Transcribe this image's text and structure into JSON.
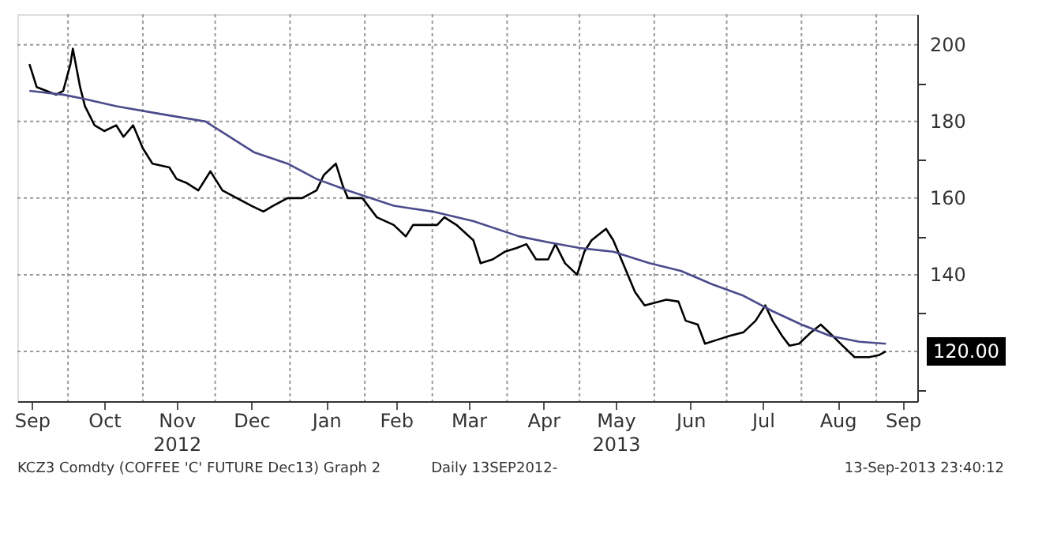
{
  "chart_data": {
    "type": "line",
    "xlim": [
      "2012-09-10",
      "2013-09-18"
    ],
    "xticks": [
      {
        "value": "2012-09-16",
        "label": "Sep"
      },
      {
        "value": "2012-10-01",
        "label": null
      },
      {
        "value": "2012-10-16",
        "label": "Oct"
      },
      {
        "value": "2012-11-01",
        "label": null
      },
      {
        "value": "2012-11-15",
        "label": "Nov\n2012"
      },
      {
        "value": "2012-12-01",
        "label": null
      },
      {
        "value": "2012-12-16",
        "label": "Dec"
      },
      {
        "value": "2013-01-01",
        "label": null
      },
      {
        "value": "2013-01-16",
        "label": "Jan"
      },
      {
        "value": "2013-02-01",
        "label": null
      },
      {
        "value": "2013-02-14",
        "label": "Feb"
      },
      {
        "value": "2013-03-01",
        "label": null
      },
      {
        "value": "2013-03-16",
        "label": "Mar"
      },
      {
        "value": "2013-04-01",
        "label": null
      },
      {
        "value": "2013-04-16",
        "label": "Apr"
      },
      {
        "value": "2013-05-01",
        "label": null
      },
      {
        "value": "2013-05-16",
        "label": "May\n2013"
      },
      {
        "value": "2013-06-01",
        "label": null
      },
      {
        "value": "2013-06-16",
        "label": "Jun"
      },
      {
        "value": "2013-07-01",
        "label": null
      },
      {
        "value": "2013-07-16",
        "label": "Jul"
      },
      {
        "value": "2013-08-01",
        "label": null
      },
      {
        "value": "2013-08-16",
        "label": "Aug"
      },
      {
        "value": "2013-09-01",
        "label": null
      },
      {
        "value": "2013-09-12",
        "label": "Sep"
      }
    ],
    "ylim": [
      107,
      208
    ],
    "yticks": [
      {
        "value": 110,
        "label": null
      },
      {
        "value": 120,
        "label": null
      },
      {
        "value": 130,
        "label": null
      },
      140,
      {
        "value": 150,
        "label": null
      },
      160,
      {
        "value": 170,
        "label": null
      },
      180,
      {
        "value": 190,
        "label": null
      },
      200
    ],
    "grid": true,
    "line_style": "solid",
    "series": [
      {
        "color": "#000000",
        "x": [
          "2012-09-15",
          "2012-09-18",
          "2012-09-22",
          "2012-09-26",
          "2012-09-29",
          "2012-10-02",
          "2012-10-03",
          "2012-10-06",
          "2012-10-08",
          "2012-10-12",
          "2012-10-16",
          "2012-10-21",
          "2012-10-24",
          "2012-10-28",
          "2012-11-01",
          "2012-11-05",
          "2012-11-12",
          "2012-11-15",
          "2012-11-19",
          "2012-11-24",
          "2012-11-29",
          "2012-12-04",
          "2012-12-10",
          "2012-12-16",
          "2012-12-21",
          "2012-12-25",
          "2012-12-31",
          "2013-01-06",
          "2013-01-12",
          "2013-01-15",
          "2013-01-20",
          "2013-01-23",
          "2013-01-25",
          "2013-01-31",
          "2013-02-06",
          "2013-02-13",
          "2013-02-18",
          "2013-02-21",
          "2013-02-26",
          "2013-03-03",
          "2013-03-06",
          "2013-03-11",
          "2013-03-18",
          "2013-03-21",
          "2013-03-26",
          "2013-03-31",
          "2013-04-05",
          "2013-04-09",
          "2013-04-13",
          "2013-04-18",
          "2013-04-21",
          "2013-04-25",
          "2013-04-30",
          "2013-05-03",
          "2013-05-06",
          "2013-05-12",
          "2013-05-15",
          "2013-05-19",
          "2013-05-24",
          "2013-05-28",
          "2013-06-06",
          "2013-06-11",
          "2013-06-14",
          "2013-06-19",
          "2013-06-22",
          "2013-06-27",
          "2013-07-02",
          "2013-07-08",
          "2013-07-13",
          "2013-07-17",
          "2013-07-20",
          "2013-07-24",
          "2013-07-27",
          "2013-07-31",
          "2013-08-05",
          "2013-08-09",
          "2013-08-14",
          "2013-08-18",
          "2013-08-23",
          "2013-08-29",
          "2013-09-02",
          "2013-09-05"
        ],
        "values": [
          195,
          189,
          188,
          187,
          188,
          195,
          199,
          189,
          184,
          179,
          177.5,
          179,
          176,
          179,
          173,
          169,
          168,
          165,
          164,
          162,
          167,
          162,
          160,
          158,
          156.5,
          158,
          160,
          160,
          162,
          166,
          169,
          163,
          160,
          160,
          155,
          153,
          150,
          153,
          153,
          153,
          155,
          153,
          149,
          143,
          144,
          146,
          147,
          148,
          144,
          144,
          148,
          143,
          140,
          146,
          149,
          152,
          149,
          143,
          135.5,
          132,
          133.5,
          133,
          128,
          127,
          122,
          123,
          124,
          125,
          128,
          132,
          128,
          124,
          121.5,
          122,
          125,
          127,
          124,
          121.5,
          118.5,
          118.5,
          119,
          120
        ]
      },
      {
        "color": "#4b4b8c",
        "x": [
          "2012-09-15",
          "2012-09-29",
          "2012-10-07",
          "2012-10-21",
          "2012-11-08",
          "2012-11-27",
          "2012-12-17",
          "2012-12-31",
          "2013-01-12",
          "2013-01-25",
          "2013-02-13",
          "2013-03-01",
          "2013-03-18",
          "2013-04-06",
          "2013-04-18",
          "2013-05-01",
          "2013-05-15",
          "2013-05-30",
          "2013-06-12",
          "2013-06-25",
          "2013-07-08",
          "2013-07-20",
          "2013-08-01",
          "2013-08-13",
          "2013-08-25",
          "2013-09-05"
        ],
        "values": [
          188,
          187,
          186,
          184,
          182,
          180,
          172,
          169,
          165,
          162,
          158,
          156.5,
          154,
          150,
          148.5,
          147,
          146,
          143,
          141,
          137.5,
          134.5,
          130.5,
          127,
          124,
          122.5,
          122
        ]
      }
    ],
    "annotations": [
      "120.00",
      "KCZ3 Comdty (COFFEE 'C' FUTURE Dec13) Graph 2",
      "Daily 13SEP2012-",
      "13-Sep-2013 23:40:12"
    ]
  }
}
